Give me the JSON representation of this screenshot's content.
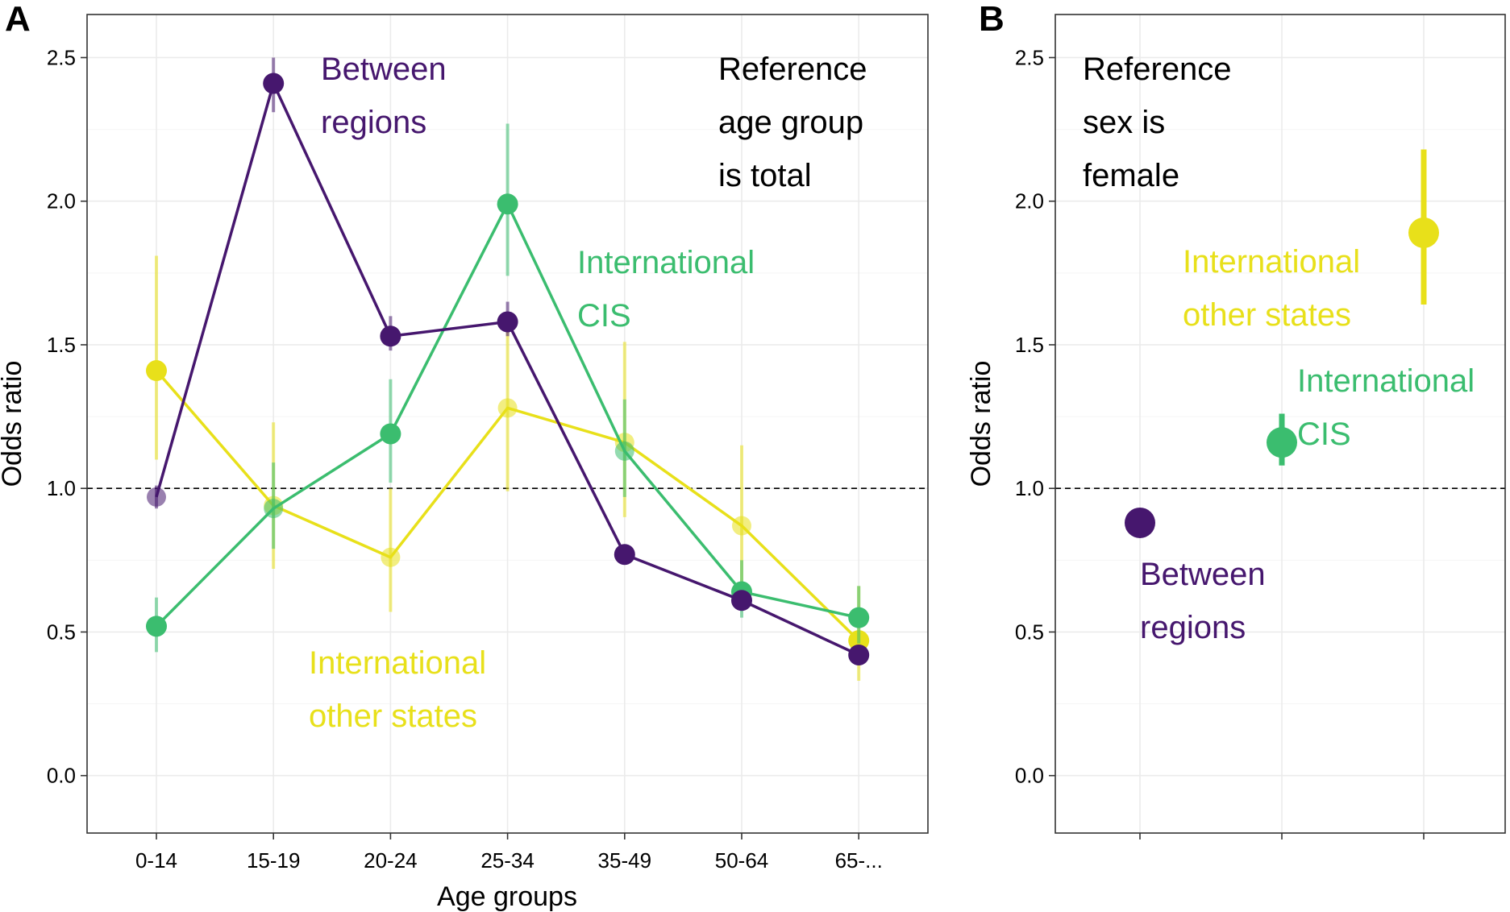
{
  "colors": {
    "between": "#46176e",
    "cis": "#3bbd6f",
    "other": "#e8e01a",
    "axis": "#333333",
    "grid": "#ebebeb",
    "text": "#000000"
  },
  "chart_data": [
    {
      "panel_label": "A",
      "type": "line",
      "xlabel": "Age groups",
      "ylabel": "Odds ratio",
      "ylim": [
        -0.2,
        2.65
      ],
      "yticks": [
        "0.0",
        "0.5",
        "1.0",
        "1.5",
        "2.0",
        "2.5"
      ],
      "categories": [
        "0-14",
        "15-19",
        "20-24",
        "25-34",
        "35-49",
        "50-64",
        "65-..."
      ],
      "reference_line": 1.0,
      "grid": true,
      "annotation": [
        "Reference",
        "age group",
        "is total"
      ],
      "series": [
        {
          "key": "other",
          "label_lines": [
            "International",
            "other states"
          ],
          "values": [
            1.41,
            0.94,
            0.76,
            1.28,
            1.16,
            0.87,
            0.47
          ],
          "lower": [
            1.1,
            0.72,
            0.57,
            0.99,
            0.9,
            0.6,
            0.33
          ],
          "upper": [
            1.81,
            1.23,
            1.0,
            1.6,
            1.51,
            1.15,
            0.66
          ],
          "faded": [
            false,
            true,
            true,
            true,
            true,
            true,
            false
          ]
        },
        {
          "key": "cis",
          "label_lines": [
            "International",
            "CIS"
          ],
          "values": [
            0.52,
            0.93,
            1.19,
            1.99,
            1.13,
            0.64,
            0.55
          ],
          "lower": [
            0.43,
            0.79,
            1.02,
            1.74,
            0.97,
            0.55,
            0.46
          ],
          "upper": [
            0.62,
            1.09,
            1.38,
            2.27,
            1.31,
            0.75,
            0.66
          ],
          "faded": [
            false,
            true,
            false,
            false,
            true,
            false,
            false
          ]
        },
        {
          "key": "between",
          "label_lines": [
            "Between",
            "regions"
          ],
          "values": [
            0.97,
            2.41,
            1.53,
            1.58,
            0.77,
            0.61,
            0.42
          ],
          "lower": [
            0.93,
            2.31,
            1.48,
            1.53,
            0.75,
            0.59,
            0.4
          ],
          "upper": [
            1.01,
            2.5,
            1.6,
            1.65,
            0.8,
            0.64,
            0.44
          ],
          "faded": [
            true,
            false,
            false,
            false,
            false,
            false,
            false
          ]
        }
      ]
    },
    {
      "panel_label": "B",
      "type": "scatter",
      "ylabel": "Odds ratio",
      "ylim": [
        -0.2,
        2.65
      ],
      "yticks": [
        "0.0",
        "0.5",
        "1.0",
        "1.5",
        "2.0",
        "2.5"
      ],
      "reference_line": 1.0,
      "grid": true,
      "annotation": [
        "Reference",
        "sex is",
        "female"
      ],
      "series": [
        {
          "key": "between",
          "label_lines": [
            "Between",
            "regions"
          ],
          "value": 0.88,
          "lower": 0.86,
          "upper": 0.9
        },
        {
          "key": "cis",
          "label_lines": [
            "International",
            "CIS"
          ],
          "value": 1.16,
          "lower": 1.08,
          "upper": 1.26
        },
        {
          "key": "other",
          "label_lines": [
            "International",
            "other states"
          ],
          "value": 1.89,
          "lower": 1.64,
          "upper": 2.18
        }
      ]
    }
  ]
}
